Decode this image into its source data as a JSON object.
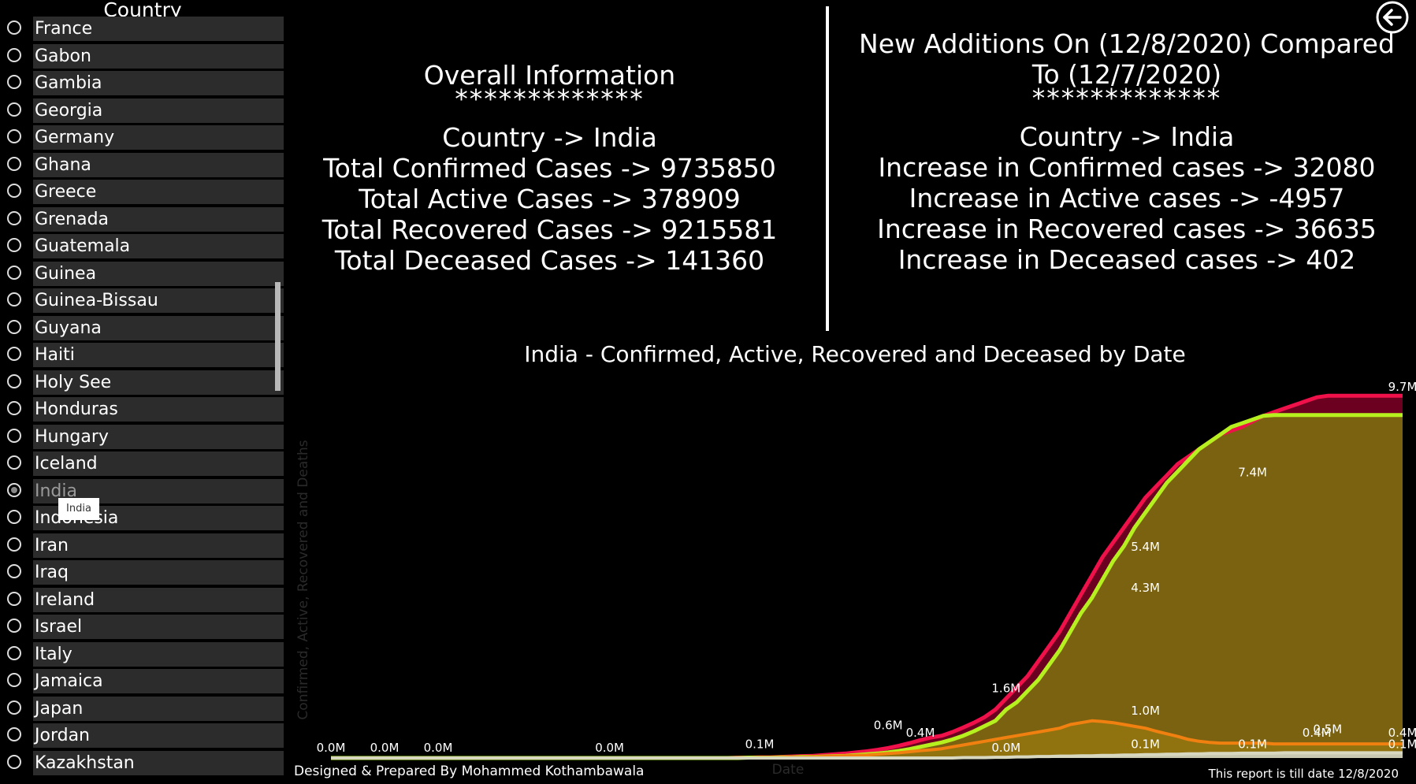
{
  "sidebar": {
    "title": "Country",
    "countries": [
      "France",
      "Gabon",
      "Gambia",
      "Georgia",
      "Germany",
      "Ghana",
      "Greece",
      "Grenada",
      "Guatemala",
      "Guinea",
      "Guinea-Bissau",
      "Guyana",
      "Haiti",
      "Holy See",
      "Honduras",
      "Hungary",
      "Iceland",
      "India",
      "Indonesia",
      "Iran",
      "Iraq",
      "Ireland",
      "Israel",
      "Italy",
      "Jamaica",
      "Japan",
      "Jordan",
      "Kazakhstan"
    ],
    "selected": "India",
    "tooltip": "India"
  },
  "overall": {
    "heading": "Overall Information",
    "stars": "*************",
    "country": "Country -> India",
    "confirmed": "Total Confirmed Cases -> 9735850",
    "active": "Total Active Cases -> 378909",
    "recovered": "Total Recovered Cases -> 9215581",
    "deceased": "Total Deceased Cases -> 141360"
  },
  "new_additions": {
    "heading_line1": "New Additions On (12/8/2020) Compared",
    "heading_line2": "To (12/7/2020)",
    "stars": "*************",
    "country": "Country -> India",
    "confirmed": "Increase in Confirmed cases -> 32080",
    "active": "Increase in Active cases -> -4957",
    "recovered": "Increase in Recovered cases -> 36635",
    "deceased": "Increase in Deceased cases -> 402"
  },
  "back_icon": "arrow-left-circle-icon",
  "footer": {
    "left": "Designed & Prepared By Mohammed Kothambawala",
    "right": "This report is till date 12/8/2020"
  },
  "chart_data": {
    "type": "area",
    "title": "India - Confirmed, Active, Recovered and Deceased by Date",
    "xlabel": "Date",
    "ylabel": "Confirmed, Active, Recovered and Deaths",
    "ylim": [
      0,
      10
    ],
    "unit": "M",
    "grid": false,
    "x": [
      0,
      1,
      2,
      3,
      4,
      5,
      6,
      7,
      8,
      9,
      10,
      11,
      12,
      13,
      14,
      15,
      16,
      17,
      18,
      19,
      20,
      21,
      22,
      23,
      24,
      25,
      26,
      27,
      28,
      29,
      30,
      31,
      32,
      33,
      34,
      35,
      36,
      37,
      38,
      39,
      40,
      41,
      42,
      43,
      44,
      45,
      46,
      47,
      48,
      49,
      50,
      51,
      52,
      53,
      54,
      55,
      56,
      57,
      58,
      59,
      60,
      61,
      62,
      63,
      64,
      65,
      66,
      67,
      68,
      69,
      70,
      71,
      72,
      73,
      74,
      75,
      76,
      77,
      78,
      79,
      80,
      81,
      82,
      83,
      84,
      85,
      86,
      87,
      88,
      89,
      90,
      91,
      92,
      93,
      94,
      95,
      96,
      97,
      98,
      99,
      100
    ],
    "series": [
      {
        "color": "#f0104a",
        "values": [
          0,
          0,
          0,
          0,
          0,
          0,
          0,
          0,
          0,
          0,
          0,
          0,
          0,
          0,
          0,
          0,
          0,
          0,
          0,
          0,
          0,
          0,
          0,
          0,
          0,
          0,
          0,
          0,
          0,
          0,
          0,
          0,
          0,
          0,
          0,
          0,
          0,
          0,
          0.01,
          0.01,
          0.02,
          0.02,
          0.03,
          0.04,
          0.05,
          0.06,
          0.08,
          0.1,
          0.12,
          0.15,
          0.18,
          0.22,
          0.27,
          0.33,
          0.4,
          0.48,
          0.55,
          0.6,
          0.7,
          0.82,
          0.95,
          1.1,
          1.3,
          1.6,
          1.9,
          2.2,
          2.6,
          3.0,
          3.4,
          3.9,
          4.4,
          4.9,
          5.4,
          5.8,
          6.2,
          6.6,
          7.0,
          7.3,
          7.6,
          7.9,
          8.1,
          8.3,
          8.5,
          8.7,
          8.8,
          8.9,
          9.05,
          9.2,
          9.3,
          9.4,
          9.5,
          9.6,
          9.7,
          9.74,
          9.74,
          9.74,
          9.74,
          9.74,
          9.74,
          9.74,
          9.74
        ]
      },
      {
        "color": "#b6f01e",
        "values": [
          0,
          0,
          0,
          0,
          0,
          0,
          0,
          0,
          0,
          0,
          0,
          0,
          0,
          0,
          0,
          0,
          0,
          0,
          0,
          0,
          0,
          0,
          0,
          0,
          0,
          0,
          0,
          0,
          0,
          0,
          0,
          0,
          0,
          0,
          0,
          0,
          0,
          0,
          0,
          0.01,
          0.01,
          0.01,
          0.02,
          0.02,
          0.03,
          0.03,
          0.04,
          0.05,
          0.06,
          0.08,
          0.1,
          0.12,
          0.15,
          0.19,
          0.24,
          0.3,
          0.36,
          0.42,
          0.5,
          0.6,
          0.72,
          0.86,
          1.0,
          1.3,
          1.5,
          1.8,
          2.1,
          2.5,
          2.9,
          3.4,
          3.9,
          4.3,
          4.8,
          5.3,
          5.7,
          6.2,
          6.6,
          7.0,
          7.4,
          7.7,
          8.0,
          8.3,
          8.5,
          8.7,
          8.9,
          9.0,
          9.1,
          9.2,
          9.22,
          9.22,
          9.22,
          9.22,
          9.22,
          9.22,
          9.22,
          9.22,
          9.22,
          9.22,
          9.22,
          9.22,
          9.22
        ]
      },
      {
        "color": "#f08010",
        "values": [
          0,
          0,
          0,
          0,
          0,
          0,
          0,
          0,
          0,
          0,
          0,
          0,
          0,
          0,
          0,
          0,
          0,
          0,
          0,
          0,
          0,
          0,
          0,
          0,
          0,
          0,
          0,
          0,
          0,
          0,
          0,
          0,
          0,
          0,
          0,
          0,
          0,
          0,
          0,
          0,
          0.01,
          0.01,
          0.01,
          0.02,
          0.02,
          0.03,
          0.04,
          0.05,
          0.06,
          0.07,
          0.08,
          0.1,
          0.12,
          0.14,
          0.17,
          0.2,
          0.22,
          0.25,
          0.3,
          0.35,
          0.4,
          0.45,
          0.5,
          0.55,
          0.6,
          0.65,
          0.7,
          0.75,
          0.8,
          0.9,
          0.95,
          1.0,
          0.98,
          0.95,
          0.9,
          0.85,
          0.8,
          0.72,
          0.65,
          0.58,
          0.5,
          0.45,
          0.42,
          0.4,
          0.4,
          0.4,
          0.4,
          0.4,
          0.38,
          0.38,
          0.38,
          0.38,
          0.38,
          0.38,
          0.38,
          0.38,
          0.38,
          0.38,
          0.38,
          0.38,
          0.38
        ]
      },
      {
        "color": "#d8d8c0",
        "values": [
          0,
          0,
          0,
          0,
          0,
          0,
          0,
          0,
          0,
          0,
          0,
          0,
          0,
          0,
          0,
          0,
          0,
          0,
          0,
          0,
          0,
          0,
          0,
          0,
          0,
          0,
          0,
          0,
          0,
          0,
          0,
          0,
          0,
          0,
          0,
          0,
          0,
          0,
          0,
          0,
          0,
          0,
          0,
          0,
          0,
          0,
          0,
          0,
          0,
          0,
          0,
          0,
          0,
          0,
          0,
          0,
          0,
          0,
          0,
          0.01,
          0.01,
          0.01,
          0.02,
          0.02,
          0.03,
          0.03,
          0.04,
          0.04,
          0.05,
          0.05,
          0.06,
          0.06,
          0.07,
          0.07,
          0.08,
          0.08,
          0.09,
          0.09,
          0.1,
          0.1,
          0.11,
          0.11,
          0.12,
          0.12,
          0.12,
          0.13,
          0.13,
          0.13,
          0.13,
          0.14,
          0.14,
          0.14,
          0.14,
          0.14,
          0.14,
          0.14,
          0.14,
          0.14,
          0.14,
          0.14,
          0.14
        ]
      }
    ],
    "data_labels": [
      {
        "x": 0,
        "y": 0,
        "text": "0.0M"
      },
      {
        "x": 5,
        "y": 0,
        "text": "0.0M"
      },
      {
        "x": 10,
        "y": 0,
        "text": "0.0M"
      },
      {
        "x": 26,
        "y": 0,
        "text": "0.0M"
      },
      {
        "x": 40,
        "y": 0.1,
        "text": "0.1M"
      },
      {
        "x": 52,
        "y": 0.6,
        "text": "0.6M"
      },
      {
        "x": 55,
        "y": 0.4,
        "text": "0.4M"
      },
      {
        "x": 63,
        "y": 0,
        "text": "0.0M"
      },
      {
        "x": 63,
        "y": 1.6,
        "text": "1.6M"
      },
      {
        "x": 76,
        "y": 1.0,
        "text": "1.0M"
      },
      {
        "x": 76,
        "y": 0.1,
        "text": "0.1M"
      },
      {
        "x": 76,
        "y": 5.4,
        "text": "5.4M"
      },
      {
        "x": 76,
        "y": 4.3,
        "text": "4.3M"
      },
      {
        "x": 86,
        "y": 7.4,
        "text": "7.4M"
      },
      {
        "x": 86,
        "y": 0.1,
        "text": "0.1M"
      },
      {
        "x": 92,
        "y": 0.4,
        "text": "0.4M"
      },
      {
        "x": 93,
        "y": 0.5,
        "text": "0.5M"
      },
      {
        "x": 100,
        "y": 9.7,
        "text": "9.7M"
      },
      {
        "x": 100,
        "y": 0.1,
        "text": "0.1M"
      },
      {
        "x": 100,
        "y": 0.4,
        "text": "0.4M"
      }
    ]
  }
}
